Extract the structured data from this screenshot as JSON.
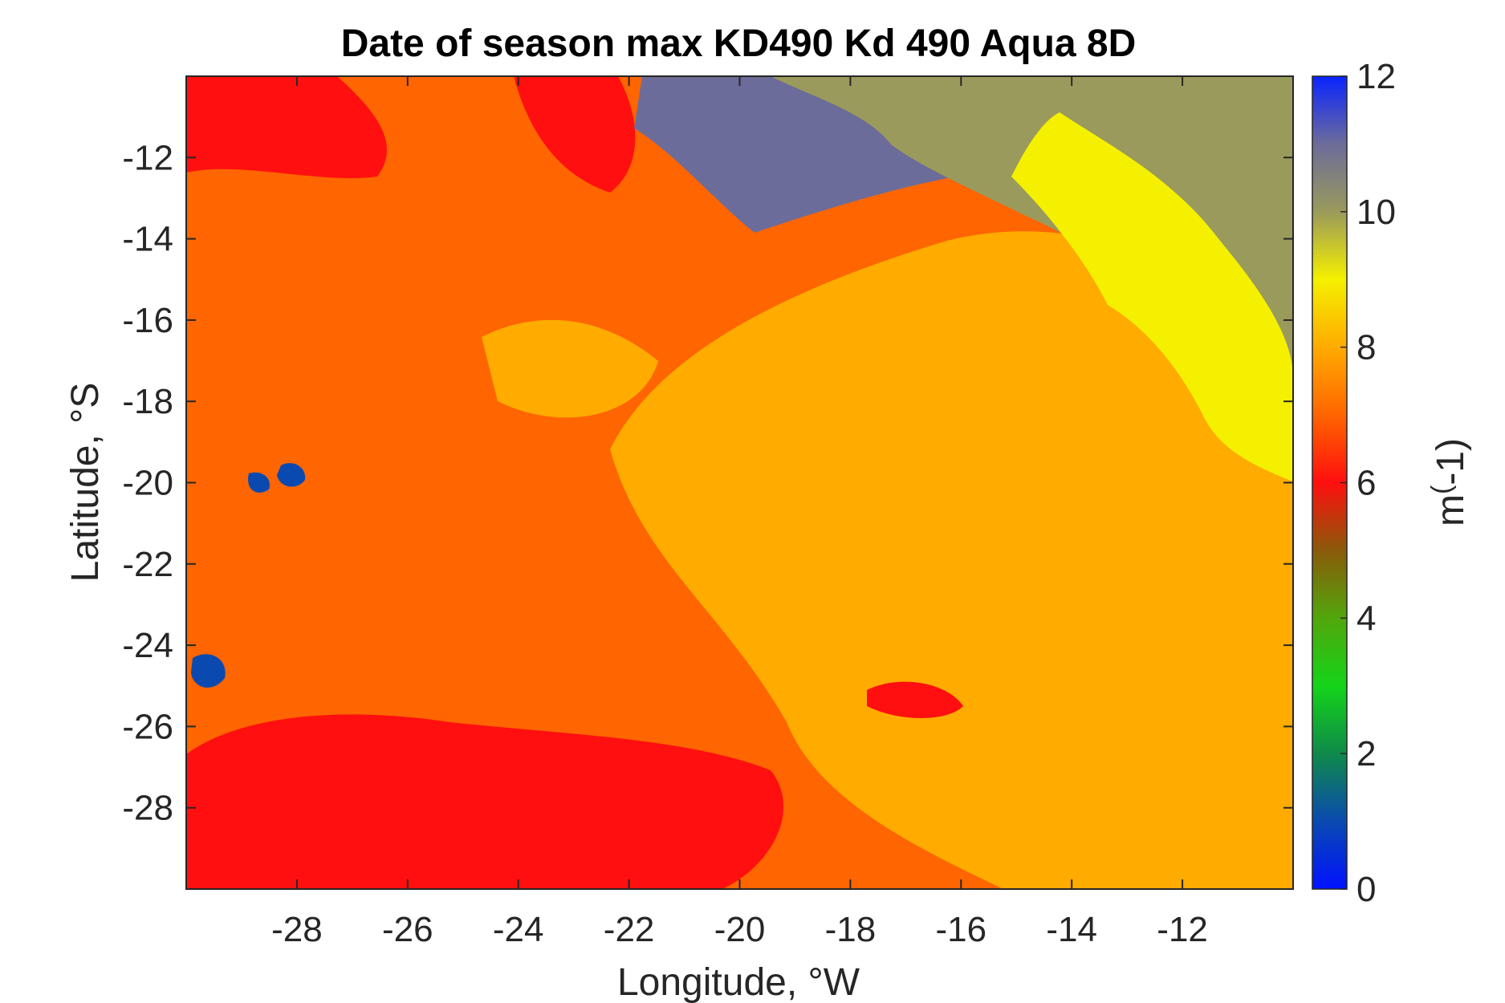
{
  "chart_data": {
    "type": "heatmap",
    "title": "Date of season max KD490 Kd 490 Aqua 8D",
    "xlabel": "Longitude, °W",
    "ylabel": "Latitude, °S",
    "colorbar_label_base": "m",
    "colorbar_label_exp": "(",
    "colorbar_label_rest": "-1)",
    "x_ticks": [
      "-28",
      "-26",
      "-24",
      "-22",
      "-20",
      "-18",
      "-16",
      "-14",
      "-12"
    ],
    "x_tick_values": [
      -28,
      -26,
      -24,
      -22,
      -20,
      -18,
      -16,
      -14,
      -12
    ],
    "y_ticks": [
      "-12",
      "-14",
      "-16",
      "-18",
      "-20",
      "-22",
      "-24",
      "-26",
      "-28"
    ],
    "y_tick_values": [
      -12,
      -14,
      -16,
      -18,
      -20,
      -22,
      -24,
      -26,
      -28
    ],
    "xlim": [
      -30,
      -10
    ],
    "ylim": [
      -30,
      -10
    ],
    "colorbar_ticks": [
      "12",
      "10",
      "8",
      "6",
      "4",
      "2",
      "0"
    ],
    "colorbar_tick_values": [
      12,
      10,
      8,
      6,
      4,
      2,
      0
    ],
    "clim": [
      0,
      12
    ],
    "colormap": [
      {
        "v": 0,
        "c": "#0012ff"
      },
      {
        "v": 1,
        "c": "#0a4ab0"
      },
      {
        "v": 2,
        "c": "#0f8a4a"
      },
      {
        "v": 3,
        "c": "#14d419"
      },
      {
        "v": 4,
        "c": "#52a60c"
      },
      {
        "v": 5,
        "c": "#8a5a0a"
      },
      {
        "v": 6,
        "c": "#ff0f0f"
      },
      {
        "v": 7,
        "c": "#ff6500"
      },
      {
        "v": 8,
        "c": "#ffab00"
      },
      {
        "v": 9,
        "c": "#f5f000"
      },
      {
        "v": 10,
        "c": "#9a9a5c"
      },
      {
        "v": 11,
        "c": "#6c6c9a"
      },
      {
        "v": 12,
        "c": "#0a24ff"
      }
    ],
    "regions": [
      {
        "value": 7,
        "desc": "dominant background"
      },
      {
        "value": 8,
        "desc": "central and south-east band"
      },
      {
        "value": 6,
        "desc": "south-west patch and north-west strip"
      },
      {
        "value": 11,
        "desc": "north purple-blue region"
      },
      {
        "value": 10,
        "desc": "north-east olive region"
      },
      {
        "value": 9,
        "desc": "north-east yellow region"
      },
      {
        "value": 1,
        "desc": "small western blue spots"
      }
    ]
  }
}
